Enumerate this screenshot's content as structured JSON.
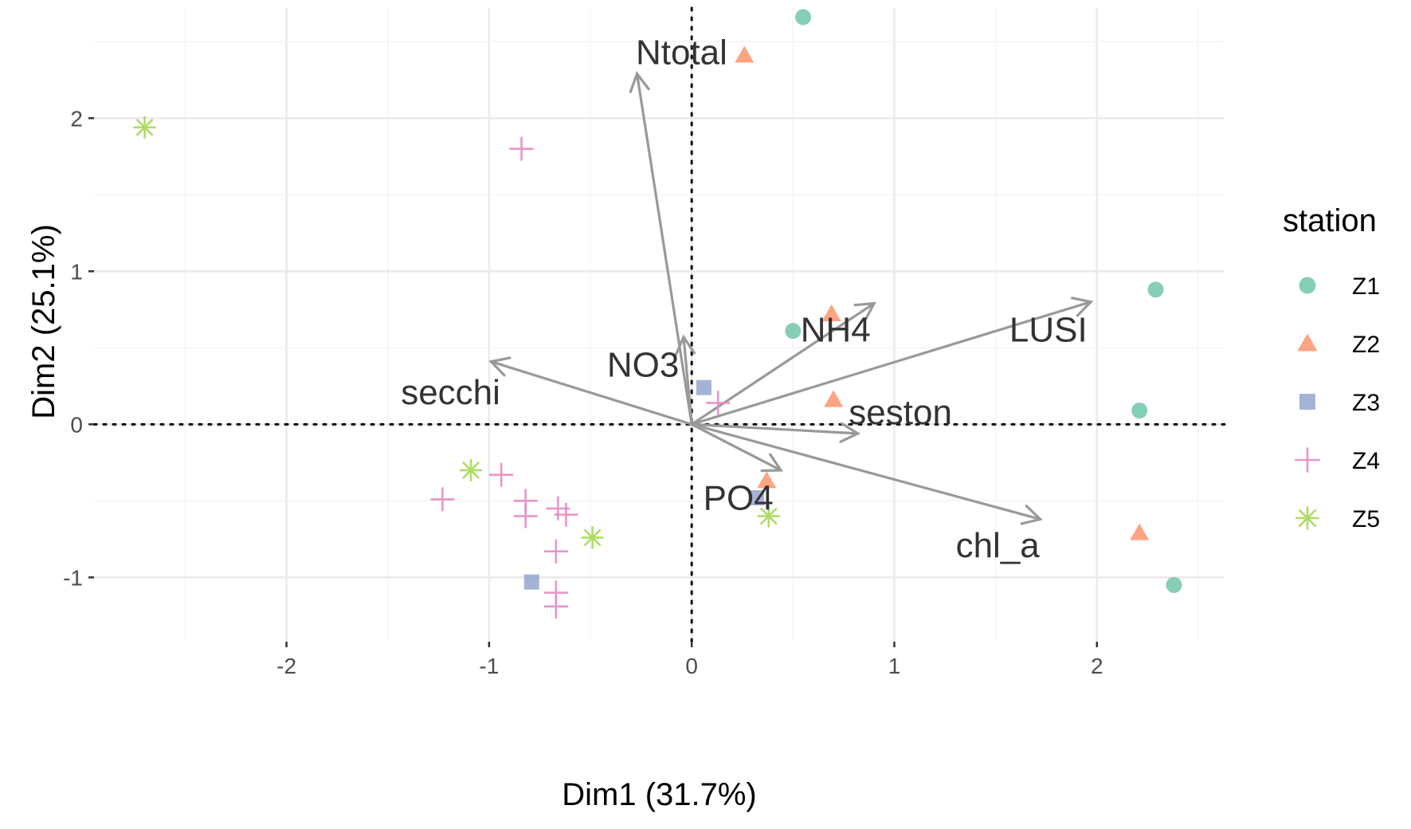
{
  "chart_data": {
    "type": "scatter",
    "subtype": "pca-biplot",
    "title": "",
    "xlabel": "Dim1 (31.7%)",
    "ylabel": "Dim2 (25.1%)",
    "xlim": [
      -2.95,
      2.63
    ],
    "ylim": [
      -1.42,
      2.72
    ],
    "x_ticks": [
      -2,
      -1,
      0,
      1,
      2
    ],
    "y_ticks": [
      -1,
      0,
      1,
      2
    ],
    "x_tick_labels": [
      "-2",
      "-1",
      "0",
      "1",
      "2"
    ],
    "y_tick_labels": [
      "-1",
      "0",
      "1",
      "2"
    ],
    "grid": true,
    "zero_lines": true,
    "legend": {
      "title": "station",
      "position": "right",
      "entries": [
        {
          "name": "Z1",
          "shape": "circle",
          "color": "#66c2a5"
        },
        {
          "name": "Z2",
          "shape": "triangle",
          "color": "#fc8d62"
        },
        {
          "name": "Z3",
          "shape": "square",
          "color": "#8da0cb"
        },
        {
          "name": "Z4",
          "shape": "plus",
          "color": "#e78ac3"
        },
        {
          "name": "Z5",
          "shape": "asterisk",
          "color": "#a6d854"
        }
      ]
    },
    "series": [
      {
        "name": "Z1",
        "shape": "circle",
        "color": "#66c2a5",
        "points": [
          [
            0.55,
            2.66
          ],
          [
            0.5,
            0.61
          ],
          [
            2.29,
            0.88
          ],
          [
            2.21,
            0.09
          ],
          [
            2.38,
            -1.05
          ]
        ]
      },
      {
        "name": "Z2",
        "shape": "triangle",
        "color": "#fc8d62",
        "points": [
          [
            0.26,
            2.41
          ],
          [
            0.69,
            0.72
          ],
          [
            0.7,
            0.16
          ],
          [
            0.37,
            -0.37
          ],
          [
            2.21,
            -0.71
          ]
        ]
      },
      {
        "name": "Z3",
        "shape": "square",
        "color": "#8da0cb",
        "points": [
          [
            0.06,
            0.24
          ],
          [
            0.32,
            -0.48
          ],
          [
            -0.79,
            -1.03
          ]
        ]
      },
      {
        "name": "Z4",
        "shape": "plus",
        "color": "#e78ac3",
        "points": [
          [
            -0.84,
            1.8
          ],
          [
            0.13,
            0.14
          ],
          [
            -0.94,
            -0.33
          ],
          [
            -1.23,
            -0.49
          ],
          [
            -0.82,
            -0.5
          ],
          [
            -0.82,
            -0.6
          ],
          [
            -0.66,
            -0.55
          ],
          [
            -0.62,
            -0.59
          ],
          [
            -0.67,
            -0.83
          ],
          [
            -0.67,
            -1.1
          ],
          [
            -0.67,
            -1.19
          ]
        ]
      },
      {
        "name": "Z5",
        "shape": "asterisk",
        "color": "#a6d854",
        "points": [
          [
            -2.7,
            1.94
          ],
          [
            -1.09,
            -0.3
          ],
          [
            -0.49,
            -0.74
          ],
          [
            0.38,
            -0.6
          ]
        ]
      }
    ],
    "variables": [
      {
        "name": "Ntotal",
        "x": -0.27,
        "y": 2.29,
        "label_x": -0.05,
        "label_y": 2.43
      },
      {
        "name": "NO3",
        "x": -0.04,
        "y": 0.57,
        "label_x": -0.24,
        "label_y": 0.39
      },
      {
        "name": "secchi",
        "x": -0.99,
        "y": 0.41,
        "label_x": -1.19,
        "label_y": 0.21
      },
      {
        "name": "NH4",
        "x": 0.9,
        "y": 0.79,
        "label_x": 0.71,
        "label_y": 0.62
      },
      {
        "name": "LUSI",
        "x": 1.97,
        "y": 0.8,
        "label_x": 1.76,
        "label_y": 0.62
      },
      {
        "name": "seston",
        "x": 0.82,
        "y": -0.06,
        "label_x": 1.03,
        "label_y": 0.08
      },
      {
        "name": "PO4",
        "x": 0.44,
        "y": -0.3,
        "label_x": 0.23,
        "label_y": -0.48
      },
      {
        "name": "chl_a",
        "x": 1.72,
        "y": -0.62,
        "label_x": 1.51,
        "label_y": -0.79
      }
    ]
  }
}
